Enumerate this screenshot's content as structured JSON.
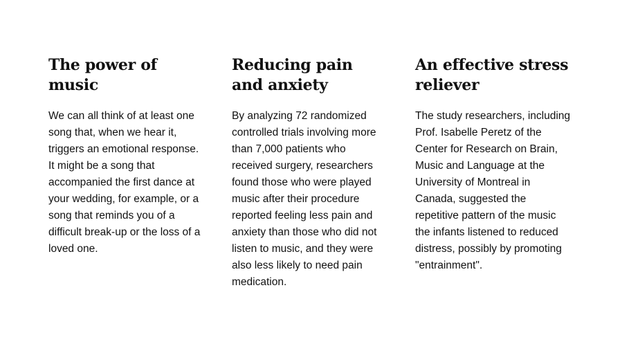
{
  "columns": [
    {
      "heading": "The power of music",
      "body": "We can all think of at least one song that, when we hear it, triggers an emotional response. It might be a song that accompanied the first dance at your wedding, for example, or a song that reminds you of a difficult break-up or the loss of a loved one."
    },
    {
      "heading": "Reducing pain and anxiety",
      "body": "By analyzing 72 randomized controlled trials involving more than 7,000 patients who received surgery, researchers found those who were played music after their procedure reported feeling less pain and anxiety than those who did not listen to music, and they were also less likely to need pain medication."
    },
    {
      "heading": "An effective stress reliever",
      "body": "The study researchers, including Prof. Isabelle Peretz of the Center for Research on Brain, Music and Language at the University of Montreal in Canada, suggested the repetitive pattern of the music the infants listened to reduced distress, possibly by promoting \"entrainment\"."
    }
  ]
}
